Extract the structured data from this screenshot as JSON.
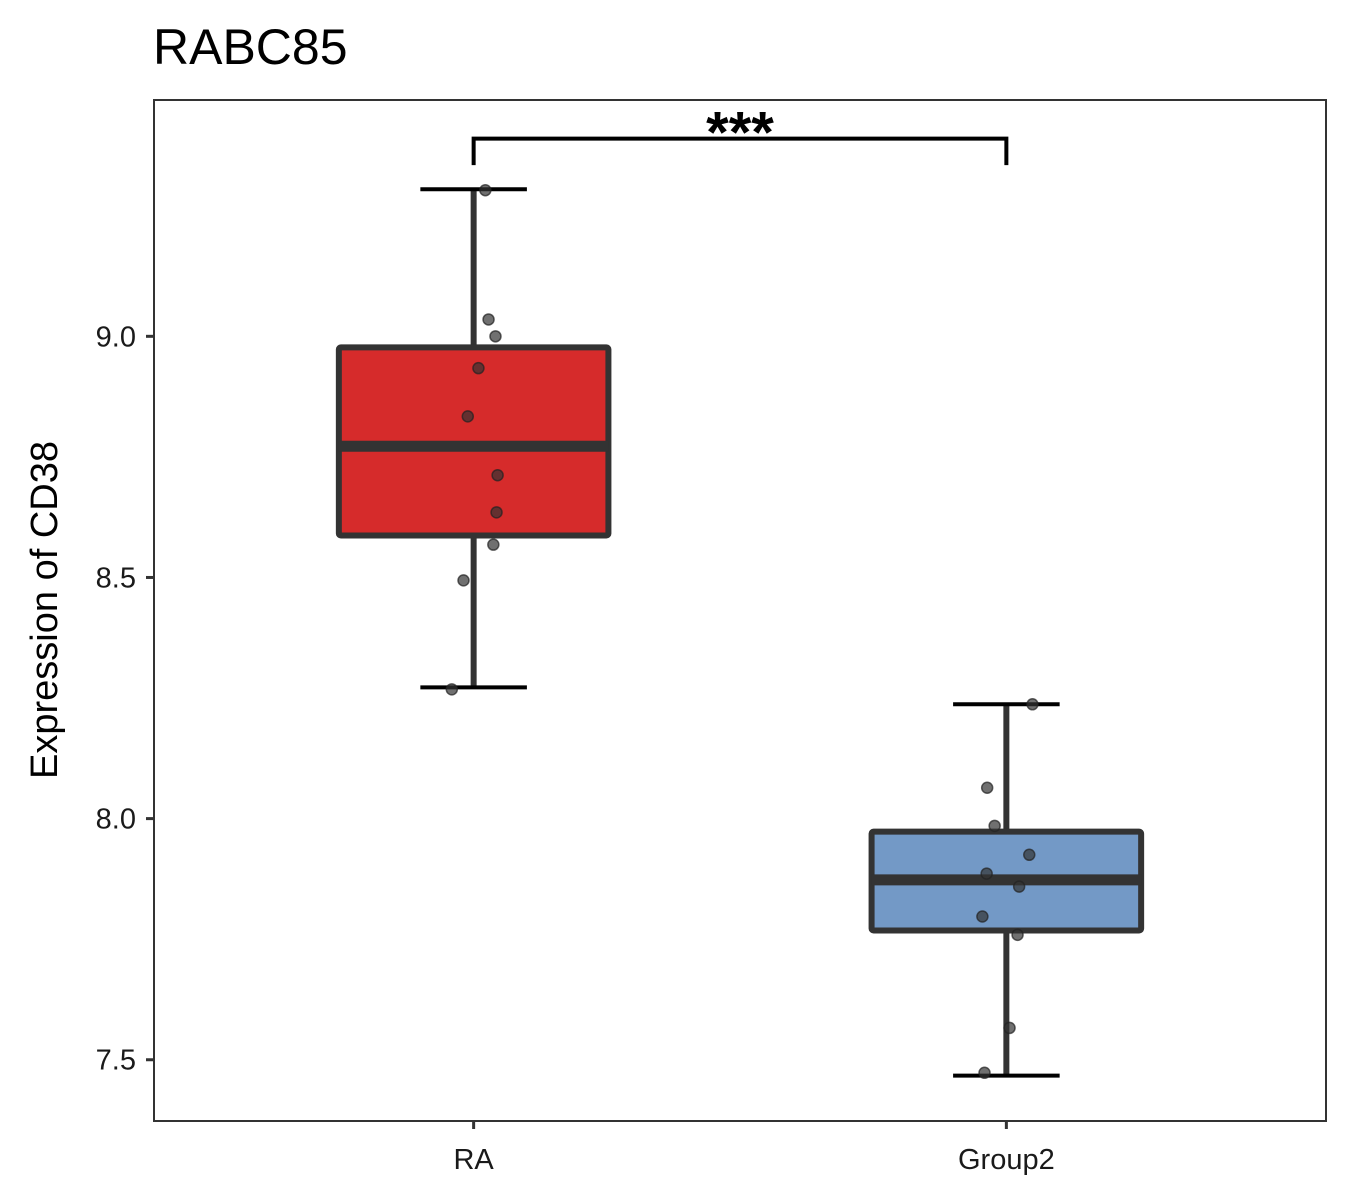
{
  "chart_data": {
    "type": "boxplot",
    "title": "RABC85",
    "xlabel": "",
    "ylabel": "Expression of CD38",
    "categories": [
      "RA",
      "Group2"
    ],
    "ylim": [
      7.373,
      9.49
    ],
    "xlim": [
      0.4,
      2.6
    ],
    "yticks": [
      7.5,
      8.0,
      8.5,
      9.0
    ],
    "ytick_labels": [
      "7.5",
      "8.0",
      "8.5",
      "9.0"
    ],
    "grid": false,
    "legend": "none",
    "boxes": [
      {
        "name": "RA",
        "color": "#D62B2B",
        "whisker_low": 8.272,
        "q1": 8.587,
        "median": 8.772,
        "q3": 8.977,
        "whisker_high": 9.305
      },
      {
        "name": "Group2",
        "color": "#7399C6",
        "whisker_low": 7.467,
        "q1": 7.768,
        "median": 7.873,
        "q3": 7.973,
        "whisker_high": 8.237
      }
    ],
    "points": [
      {
        "group": 0,
        "jitter": [
          0.022,
          0.028,
          0.041,
          0.009,
          -0.011,
          0.045,
          0.043,
          0.037,
          -0.019,
          -0.041
        ],
        "values": [
          9.303,
          9.035,
          9.0,
          8.934,
          8.834,
          8.712,
          8.635,
          8.568,
          8.494,
          8.268
        ]
      },
      {
        "group": 1,
        "jitter": [
          0.049,
          -0.036,
          -0.022,
          0.043,
          -0.037,
          0.024,
          -0.045,
          0.021,
          0.006,
          -0.041
        ],
        "values": [
          8.237,
          8.064,
          7.985,
          7.925,
          7.886,
          7.859,
          7.797,
          7.759,
          7.566,
          7.473
        ]
      }
    ],
    "significance": {
      "groups": [
        0,
        1
      ],
      "label": "***",
      "y": 9.41,
      "tip_y": 9.355
    },
    "colors": {
      "box_outline": "#333333",
      "point": "#333333",
      "panel_border": "#333333"
    }
  }
}
